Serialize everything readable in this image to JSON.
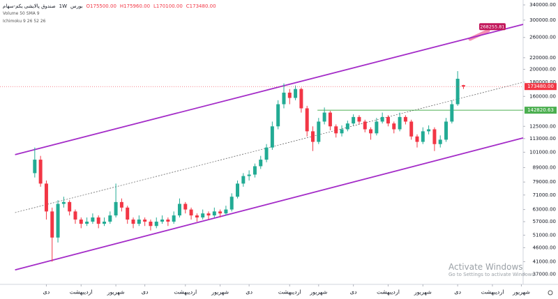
{
  "chart_data": {
    "type": "candlestick",
    "title": "صندوق پالایشی یکم-سهام",
    "interval": "1W",
    "exchange": "بورس",
    "header_values": [
      "O175500.00",
      "H175960.00",
      "L170100.00",
      "C173480.00"
    ],
    "indicators": [
      "Volume 50 SMA 9",
      "Ichimoku 9 26 52 26"
    ],
    "watermark": [
      "Activate Windows",
      "Go to Settings to activate Windows."
    ],
    "log_scale": true,
    "up_color": "#22ab94",
    "down_color": "#f23645",
    "channel_color": "#a42cc8",
    "xlim": [
      -6,
      84.3
    ],
    "ylim": [
      34000,
      354000
    ],
    "xticks": [
      {
        "value": 2,
        "label": "دی"
      },
      {
        "value": 8,
        "label": "اردیبهشت"
      },
      {
        "value": 14,
        "label": "شهریور"
      },
      {
        "value": 19,
        "label": "دی"
      },
      {
        "value": 26,
        "label": "اردیبهشت"
      },
      {
        "value": 32,
        "label": "شهریور"
      },
      {
        "value": 37,
        "label": "دی"
      },
      {
        "value": 44,
        "label": "اردیبهشت"
      },
      {
        "value": 49,
        "label": "شهریور"
      },
      {
        "value": 55,
        "label": "دی"
      },
      {
        "value": 61,
        "label": "اردیبهشت"
      },
      {
        "value": 67,
        "label": "شهریور"
      },
      {
        "value": 73,
        "label": "دی"
      },
      {
        "value": 79,
        "label": "اردیبهشت"
      },
      {
        "value": 84,
        "label": "شهریور"
      }
    ],
    "yticks": [
      {
        "value": 340000,
        "label": "340000.00"
      },
      {
        "value": 300000,
        "label": "300000.00"
      },
      {
        "value": 260000,
        "label": "260000.00"
      },
      {
        "value": 220000,
        "label": "220000.00"
      },
      {
        "value": 200000,
        "label": "200000.00"
      },
      {
        "value": 180000,
        "label": "180000.00"
      },
      {
        "value": 160000,
        "label": "160000.00"
      },
      {
        "value": 125000,
        "label": "125000.00"
      },
      {
        "value": 113000,
        "label": "113000.00"
      },
      {
        "value": 101000,
        "label": "101000.00"
      },
      {
        "value": 89000,
        "label": "89000.00"
      },
      {
        "value": 79000,
        "label": "79000.00"
      },
      {
        "value": 71000,
        "label": "71000.00"
      },
      {
        "value": 63000,
        "label": "63000.00"
      },
      {
        "value": 57000,
        "label": "57000.00"
      },
      {
        "value": 51000,
        "label": "51000.00"
      },
      {
        "value": 46000,
        "label": "46000.00"
      },
      {
        "value": 41000,
        "label": "41000.00"
      },
      {
        "value": 37000,
        "label": "37000.00"
      }
    ],
    "ohlc": [
      [
        85000,
        105000,
        82000,
        95000
      ],
      [
        95000,
        98000,
        76000,
        78000
      ],
      [
        78000,
        80000,
        58000,
        62000
      ],
      [
        62000,
        64000,
        41000,
        50000
      ],
      [
        50000,
        68000,
        48000,
        66000
      ],
      [
        66000,
        70000,
        64000,
        67000
      ],
      [
        67000,
        68000,
        60000,
        62000
      ],
      [
        62000,
        63000,
        56000,
        58000
      ],
      [
        58000,
        59000,
        54000,
        56000
      ],
      [
        56000,
        59000,
        55000,
        57000
      ],
      [
        57000,
        61000,
        56000,
        59000
      ],
      [
        59000,
        60000,
        54000,
        56000
      ],
      [
        56000,
        59000,
        55000,
        57000
      ],
      [
        57000,
        62000,
        56000,
        60000
      ],
      [
        60000,
        78000,
        59000,
        67000
      ],
      [
        67000,
        69000,
        62000,
        64000
      ],
      [
        64000,
        65000,
        56000,
        58000
      ],
      [
        58000,
        59000,
        54000,
        56000
      ],
      [
        56000,
        60000,
        55000,
        58000
      ],
      [
        58000,
        59000,
        55000,
        57000
      ],
      [
        57000,
        58000,
        53000,
        55000
      ],
      [
        55000,
        59000,
        54000,
        57000
      ],
      [
        57000,
        60000,
        56000,
        58000
      ],
      [
        58000,
        59000,
        55000,
        57000
      ],
      [
        57000,
        62000,
        56000,
        60000
      ],
      [
        60000,
        69000,
        59000,
        66000
      ],
      [
        66000,
        67000,
        61000,
        63000
      ],
      [
        63000,
        64000,
        58000,
        60000
      ],
      [
        60000,
        61000,
        57000,
        59000
      ],
      [
        59000,
        63000,
        58000,
        61000
      ],
      [
        61000,
        62000,
        58000,
        60000
      ],
      [
        60000,
        64000,
        59000,
        62000
      ],
      [
        62000,
        63000,
        59000,
        61000
      ],
      [
        61000,
        65000,
        60000,
        63000
      ],
      [
        63000,
        72000,
        62000,
        70000
      ],
      [
        70000,
        80000,
        69000,
        78000
      ],
      [
        78000,
        85000,
        76000,
        83000
      ],
      [
        83000,
        87000,
        80000,
        84000
      ],
      [
        84000,
        92000,
        82000,
        90000
      ],
      [
        90000,
        98000,
        88000,
        95000
      ],
      [
        95000,
        108000,
        93000,
        105000
      ],
      [
        105000,
        130000,
        103000,
        125000
      ],
      [
        125000,
        155000,
        122000,
        150000
      ],
      [
        150000,
        178000,
        145000,
        165000
      ],
      [
        165000,
        170000,
        150000,
        158000
      ],
      [
        158000,
        175000,
        155000,
        170000
      ],
      [
        170000,
        172000,
        140000,
        145000
      ],
      [
        145000,
        148000,
        115000,
        120000
      ],
      [
        120000,
        125000,
        102000,
        110000
      ],
      [
        110000,
        134000,
        108000,
        130000
      ],
      [
        130000,
        146000,
        127000,
        140000
      ],
      [
        140000,
        142000,
        121000,
        125000
      ],
      [
        125000,
        127000,
        114000,
        118000
      ],
      [
        118000,
        126000,
        115000,
        122000
      ],
      [
        122000,
        131000,
        120000,
        128000
      ],
      [
        128000,
        138000,
        126000,
        135000
      ],
      [
        135000,
        137000,
        127000,
        130000
      ],
      [
        130000,
        132000,
        119000,
        122000
      ],
      [
        122000,
        124000,
        112000,
        118000
      ],
      [
        118000,
        134000,
        116000,
        130000
      ],
      [
        130000,
        140000,
        128000,
        135000
      ],
      [
        135000,
        137000,
        125000,
        128000
      ],
      [
        128000,
        130000,
        118000,
        122000
      ],
      [
        122000,
        140000,
        120000,
        135000
      ],
      [
        135000,
        137000,
        127000,
        130000
      ],
      [
        130000,
        132000,
        112000,
        115000
      ],
      [
        115000,
        117000,
        105000,
        110000
      ],
      [
        110000,
        124000,
        108000,
        120000
      ],
      [
        120000,
        126000,
        117000,
        122000
      ],
      [
        122000,
        124000,
        102000,
        108000
      ],
      [
        108000,
        116000,
        105000,
        112000
      ],
      [
        112000,
        134000,
        110000,
        130000
      ],
      [
        130000,
        155000,
        128000,
        150000
      ],
      [
        150000,
        197000,
        148000,
        185000
      ],
      [
        175500,
        175960,
        170100,
        173480
      ]
    ],
    "trend_lines": [
      {
        "style": "solid",
        "points": [
          [
            -3.4,
            99000
          ],
          [
            84.3,
            289600
          ]
        ]
      },
      {
        "style": "solid",
        "points": [
          [
            -3.4,
            38300
          ],
          [
            84.3,
            113600
          ]
        ]
      },
      {
        "style": "dashed",
        "points": [
          [
            -3.4,
            61400
          ],
          [
            84.3,
            179700
          ]
        ]
      }
    ],
    "level": {
      "value": 142820.63,
      "label": "142820.63",
      "start": 48.8,
      "color": "#4caf50"
    },
    "last_label": "173480.00",
    "target": {
      "value": 268255.81,
      "label": "268255.81",
      "x": 79,
      "color": "#c2185b"
    }
  }
}
